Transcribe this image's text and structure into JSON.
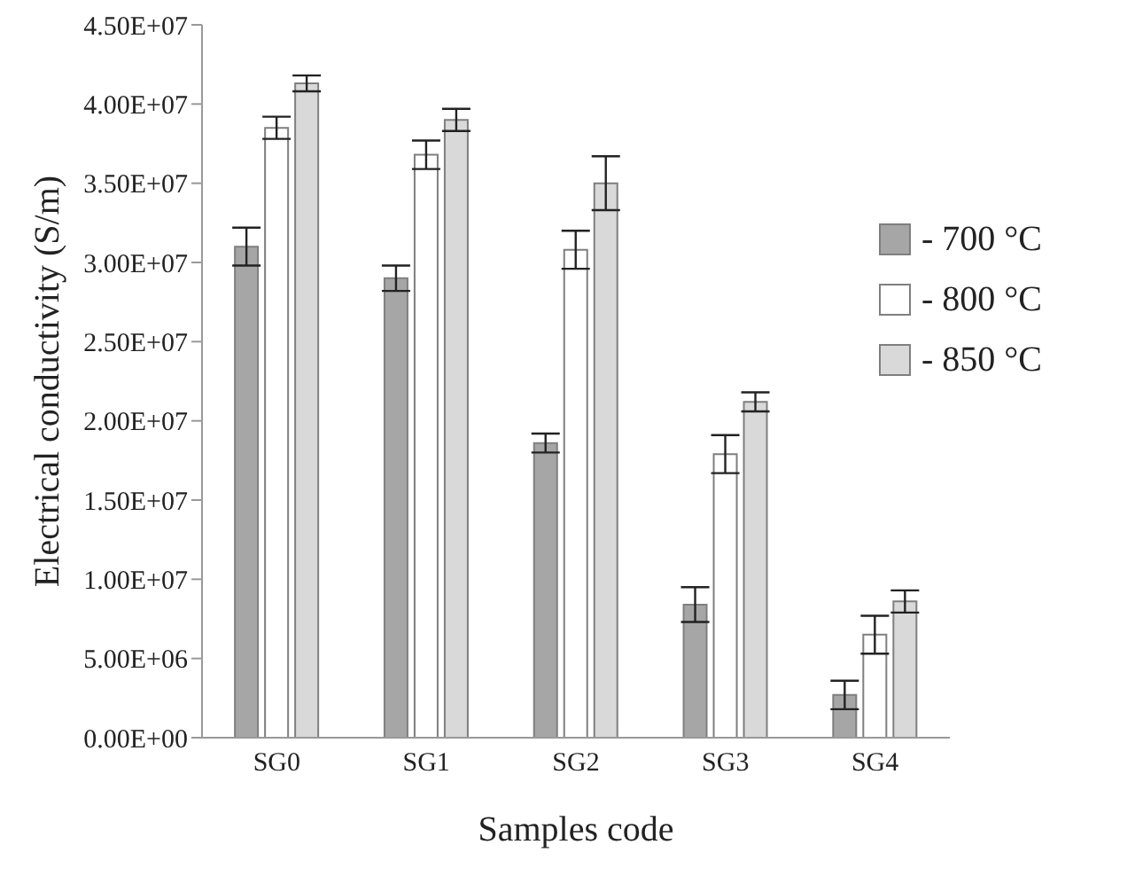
{
  "chart_data": {
    "type": "bar",
    "xlabel": "Samples code",
    "ylabel": "Electrical conductivity (S/m)",
    "categories": [
      "SG0",
      "SG1",
      "SG2",
      "SG3",
      "SG4"
    ],
    "series": [
      {
        "name": "- 700 °C",
        "color": "#a6a6a6",
        "values": [
          31000000,
          29000000,
          18600000,
          8400000,
          2700000
        ],
        "errors": [
          1200000,
          800000,
          600000,
          1100000,
          900000
        ]
      },
      {
        "name": "- 800 °C",
        "color": "#ffffff",
        "values": [
          38500000,
          36800000,
          30800000,
          17900000,
          6500000
        ],
        "errors": [
          700000,
          900000,
          1200000,
          1200000,
          1200000
        ]
      },
      {
        "name": "- 850 °C",
        "color": "#d9d9d9",
        "values": [
          41300000,
          39000000,
          35000000,
          21200000,
          8600000
        ],
        "errors": [
          500000,
          700000,
          1700000,
          600000,
          700000
        ]
      }
    ],
    "ylim": [
      0,
      45000000
    ],
    "yticks": [
      {
        "value": 0,
        "label": "0.00E+00"
      },
      {
        "value": 5000000,
        "label": "5.00E+06"
      },
      {
        "value": 10000000,
        "label": "1.00E+07"
      },
      {
        "value": 15000000,
        "label": "1.50E+07"
      },
      {
        "value": 20000000,
        "label": "2.00E+07"
      },
      {
        "value": 25000000,
        "label": "2.50E+07"
      },
      {
        "value": 30000000,
        "label": "3.00E+07"
      },
      {
        "value": 35000000,
        "label": "3.50E+07"
      },
      {
        "value": 40000000,
        "label": "4.00E+07"
      },
      {
        "value": 45000000,
        "label": "4.50E+07"
      }
    ],
    "grid": false,
    "legend": "top right"
  }
}
